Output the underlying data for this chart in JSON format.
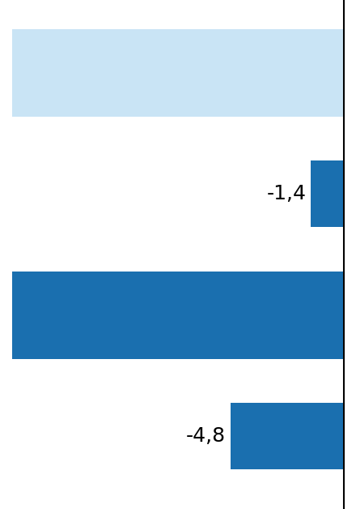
{
  "bars": [
    {
      "label": "",
      "value": 100,
      "color": "#c9e4f5",
      "text": ""
    },
    {
      "label": "",
      "value": -1.4,
      "color": "#1a6faf",
      "text": "-1,4"
    },
    {
      "label": "",
      "value": 100,
      "color": "#1a6faf",
      "text": ""
    },
    {
      "label": "",
      "value": -4.8,
      "color": "#1a6faf",
      "text": "-4,8"
    }
  ],
  "max_value": 14,
  "bar_height": 0.55,
  "background_color": "#ffffff",
  "axis_color": "#000000",
  "text_color": "#000000",
  "font_size": 18,
  "figsize": [
    4.4,
    6.28
  ],
  "dpi": 100,
  "light_blue": "#c9e4f5",
  "dark_blue": "#1a6faf"
}
